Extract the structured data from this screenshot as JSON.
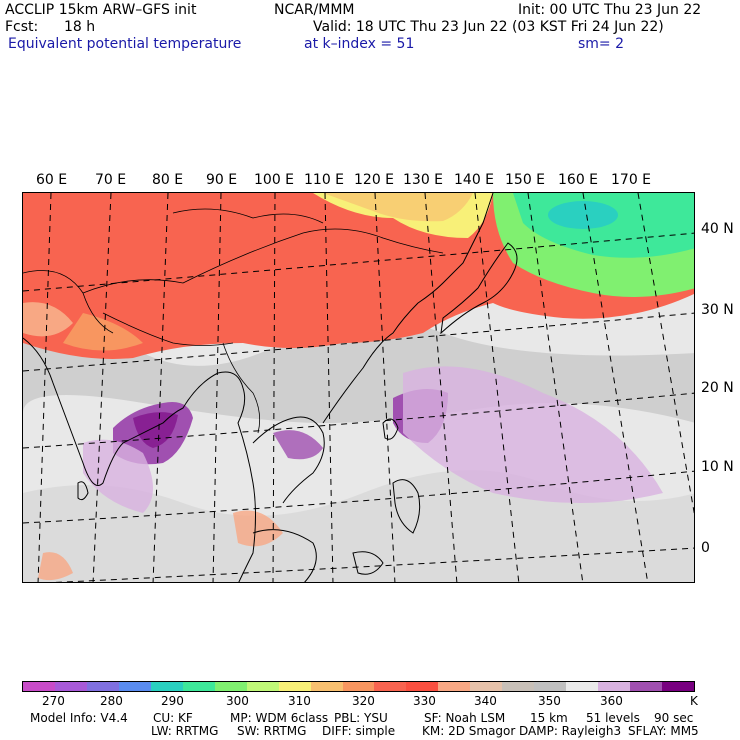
{
  "header": {
    "model": "ACCLIP 15km ARW–GFS init",
    "center": "NCAR/MMM",
    "init": "Init: 00 UTC Thu 23 Jun 22",
    "fcst_label": "Fcst:",
    "fcst_value": "18 h",
    "valid": "Valid: 18 UTC Thu 23 Jun 22 (03 KST Fri 24 Jun 22)",
    "field": "Equivalent potential temperature",
    "level": "at k–index =  51",
    "smooth": "sm= 2"
  },
  "map": {
    "lon_labels": [
      "60 E",
      "70 E",
      "80 E",
      "90 E",
      "100 E",
      "110 E",
      "120 E",
      "130 E",
      "140 E",
      "150 E",
      "160 E",
      "170 E"
    ],
    "lat_labels": [
      "40 N",
      "30 N",
      "20 N",
      "10 N",
      "0"
    ]
  },
  "colorbar": {
    "unit": "K",
    "tick_labels": [
      "270",
      "280",
      "290",
      "300",
      "310",
      "320",
      "330",
      "340",
      "350",
      "360"
    ],
    "colors": [
      "#c84cc8",
      "#a85ad8",
      "#8070e0",
      "#5a8cf0",
      "#2ad0c0",
      "#3ee89a",
      "#80f070",
      "#c0f878",
      "#f8f078",
      "#f8c070",
      "#f89660",
      "#f86450",
      "#fa5040",
      "#f8a884",
      "#e6c2aa",
      "#c8c0b8",
      "#c0c0c0",
      "#eaeaea",
      "#d8b2e0",
      "#a050b0",
      "#780080"
    ]
  },
  "footer": {
    "model_info": "Model Info: V4.4",
    "cu": "CU: KF",
    "mp": "MP: WDM 6class",
    "pbl": "PBL: YSU",
    "sf": "SF: Noah LSM",
    "res": "15 km",
    "levels": "51 levels",
    "dt": "90 sec",
    "lw": "LW: RRTMG",
    "sw": "SW: RRTMG",
    "diff": "DIFF: simple",
    "km": "KM: 2D Smagor",
    "damp": "DAMP: Rayleigh3",
    "sflay": "SFLAY: MM5"
  }
}
